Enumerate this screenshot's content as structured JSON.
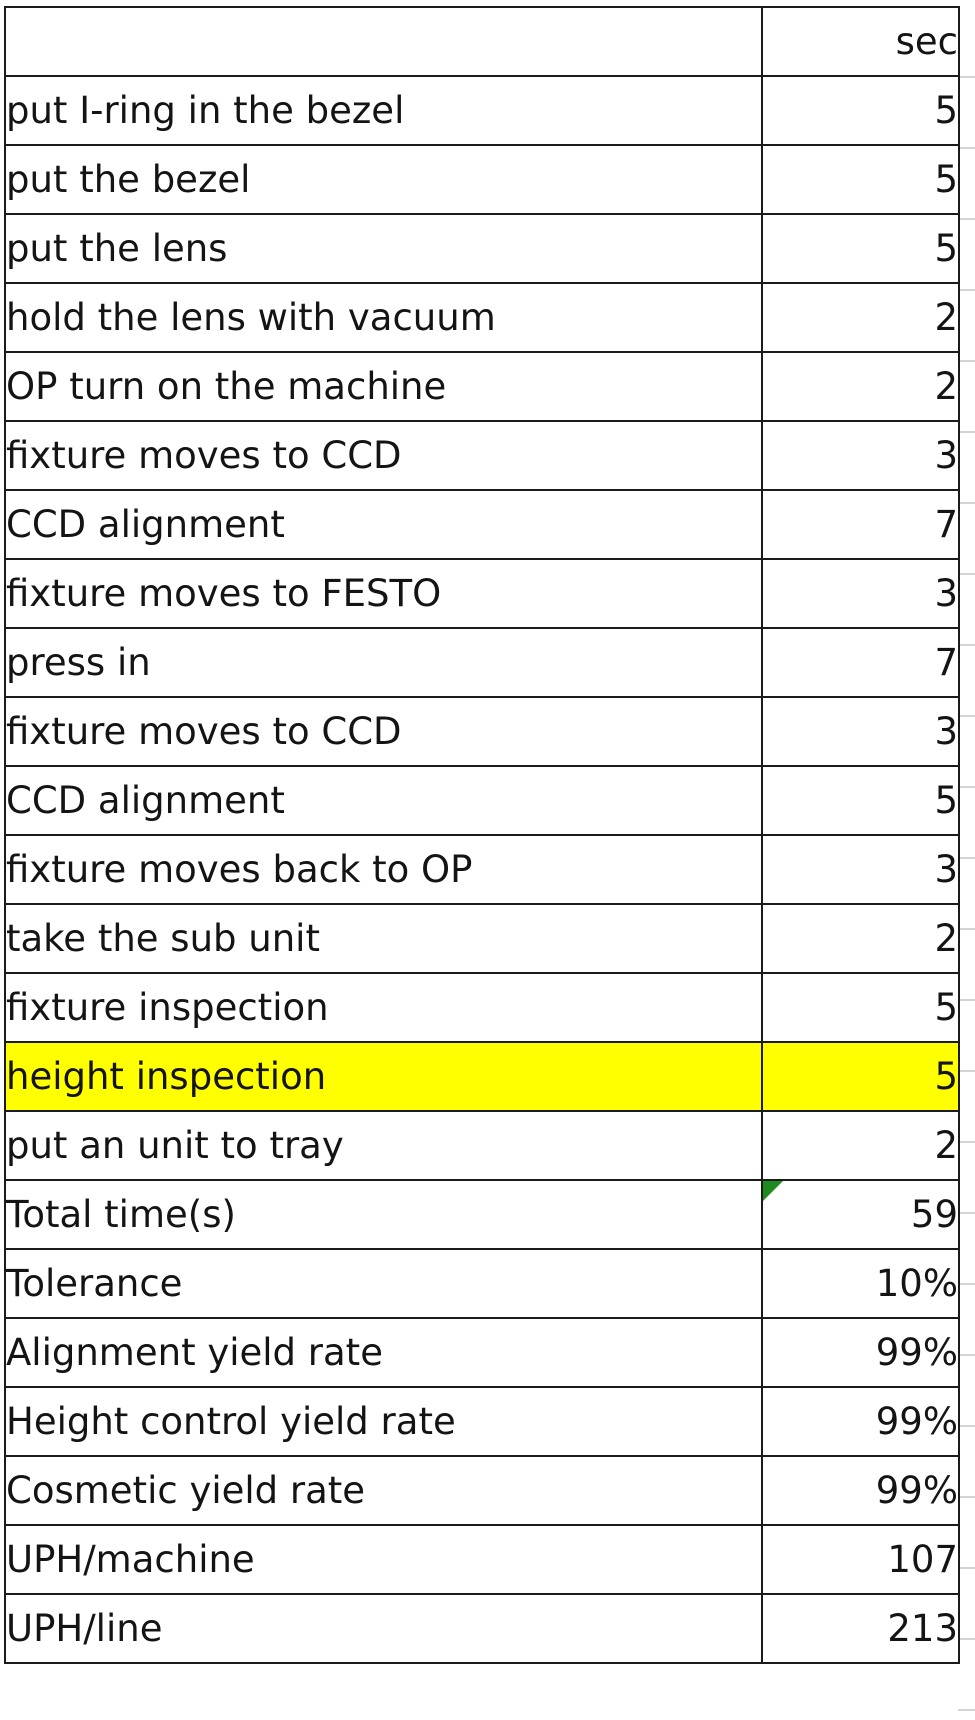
{
  "header": {
    "label": "",
    "value": "sec"
  },
  "steps": [
    {
      "label": "put I-ring in the bezel",
      "value": "5"
    },
    {
      "label": "put the bezel",
      "value": "5"
    },
    {
      "label": "put the lens",
      "value": "5"
    },
    {
      "label": "hold the lens with vacuum",
      "value": "2"
    },
    {
      "label": "OP turn on the machine",
      "value": "2"
    },
    {
      "label": "fixture moves to CCD",
      "value": "3"
    },
    {
      "label": "CCD alignment",
      "value": "7"
    },
    {
      "label": "fixture moves to FESTO",
      "value": "3"
    },
    {
      "label": "press in",
      "value": "7"
    },
    {
      "label": "fixture moves to CCD",
      "value": "3"
    },
    {
      "label": "CCD alignment",
      "value": "5"
    },
    {
      "label": "fixture moves back to OP",
      "value": "3"
    },
    {
      "label": "take the sub unit",
      "value": "2"
    },
    {
      "label": "fixture inspection",
      "value": "5"
    },
    {
      "label": "height inspection",
      "value": "5",
      "highlight": true
    },
    {
      "label": "put an unit to tray",
      "value": "2"
    }
  ],
  "summary": [
    {
      "label": "Total time(s)",
      "value": "59",
      "comment_marker": true
    },
    {
      "label": "Tolerance",
      "value": "10%"
    },
    {
      "label": "Alignment yield rate",
      "value": "99%"
    },
    {
      "label": "Height control yield rate",
      "value": "99%"
    },
    {
      "label": "Cosmetic yield rate",
      "value": "99%"
    },
    {
      "label": "UPH/machine",
      "value": "107"
    },
    {
      "label": "UPH/line",
      "value": "213"
    }
  ],
  "colors": {
    "highlight": "#ffff00",
    "comment_marker": "#1f8a1f",
    "border": "#1b1b1b"
  }
}
